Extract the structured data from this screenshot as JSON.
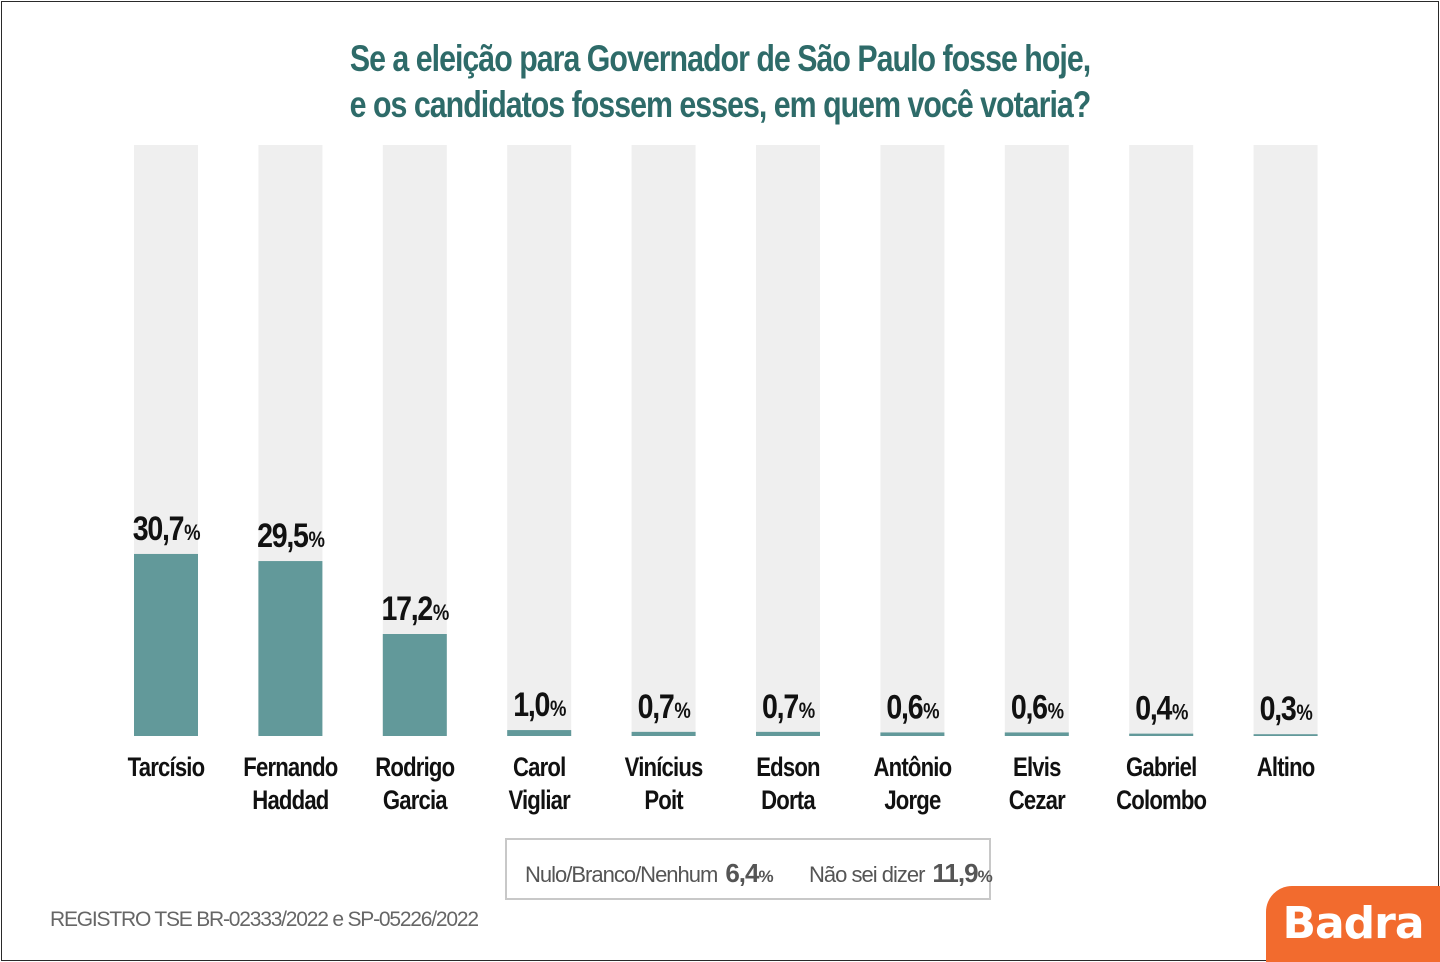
{
  "chart_data": {
    "type": "bar",
    "title_lines": [
      "Se a eleição para Governador de São Paulo fosse hoje,",
      "e os candidatos fossem esses, em quem você votaria?"
    ],
    "categories": [
      [
        "Tarcísio"
      ],
      [
        "Fernando",
        "Haddad"
      ],
      [
        "Rodrigo",
        "Garcia"
      ],
      [
        "Carol",
        "Vigliar"
      ],
      [
        "Vinícius",
        "Poit"
      ],
      [
        "Edson",
        "Dorta"
      ],
      [
        "Antônio",
        "Jorge"
      ],
      [
        "Elvis",
        "Cezar"
      ],
      [
        "Gabriel",
        "Colombo"
      ],
      [
        "Altino"
      ]
    ],
    "values": [
      30.7,
      29.5,
      17.2,
      1.0,
      0.7,
      0.7,
      0.6,
      0.6,
      0.4,
      0.3
    ],
    "value_labels": [
      "30,7",
      "29,5",
      "17,2",
      "1,0",
      "0,7",
      "0,7",
      "0,6",
      "0,6",
      "0,4",
      "0,3"
    ],
    "unit": "%",
    "ylim": [
      0,
      100
    ],
    "grid": false,
    "legend": "none"
  },
  "others": [
    {
      "label": "Nulo/Branco/Nenhum",
      "value": "6,4",
      "unit": "%"
    },
    {
      "label": "Não sei dizer",
      "value": "11,9",
      "unit": "%"
    }
  ],
  "footer": {
    "registry": "REGISTRO TSE BR-02333/2022 e SP-05226/2022",
    "brand": "Badra"
  },
  "colors": {
    "bar": "#62999a",
    "track": "#efefef",
    "title": "#2e6b69",
    "brand": "#f26b2e"
  }
}
